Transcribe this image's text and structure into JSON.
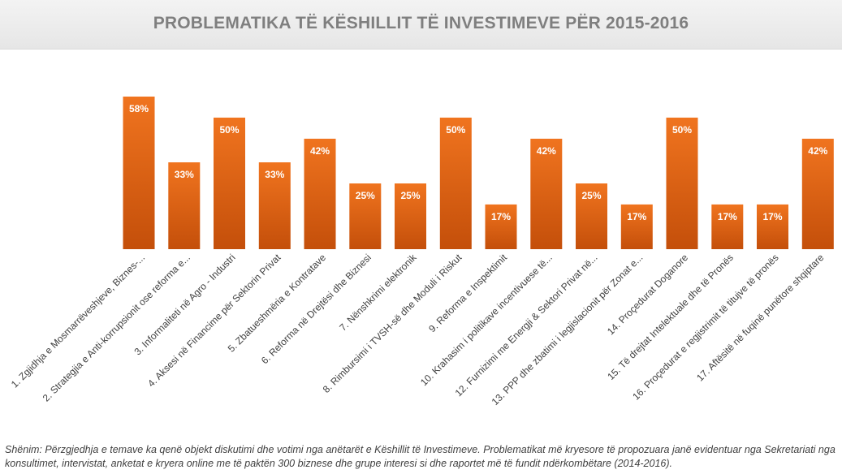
{
  "chart_data": {
    "type": "bar",
    "title": "PROBLEMATIKA TË KËSHILLIT TË INVESTIMEVE PËR 2015-2016",
    "categories": [
      "1. Zgjidhja e Mosmarrëveshjeve, Biznes-...",
      "2. Strategjia e Anti-korrupsionit ose reforma e...",
      "3. Informaliteti në Agro - Industri",
      "4. Aksesi në Financime për Sektorin Privat",
      "5. Zbatueshmëria e Kontratave",
      "6. Reforma në Drejtësi dhe Biznesi",
      "7. Nënshkrimi elektronik",
      "8. Rimbursimi i TVSH-së dhe Moduli i Riskut",
      "9. Reforma e Inspektimit",
      "10. Krahasim i politikave incentivuese të...",
      "12. Furnizimi me Energji & Sektori Privat në...",
      "13. PPP dhe zbatimi i legjislacionit për Zonat e...",
      "14. Proçedurat Doganore",
      "15. Të drejtat Intelektuale dhe të Pronës",
      "16. Proçedurat e regjistrimit të titujve të pronës",
      "17. Aftësitë në fuqinë punëtore shqiptare"
    ],
    "values": [
      58,
      33,
      50,
      33,
      42,
      25,
      25,
      50,
      17,
      42,
      25,
      17,
      50,
      17,
      17,
      42
    ],
    "value_labels": [
      "58%",
      "33%",
      "50%",
      "33%",
      "42%",
      "25%",
      "25%",
      "50%",
      "17%",
      "42%",
      "25%",
      "17%",
      "50%",
      "17%",
      "17%",
      "42%"
    ],
    "ylim": [
      0,
      65
    ],
    "grid": false,
    "legend": "none",
    "bar_color_top": "#f0741f",
    "bar_color_bottom": "#c44f0a",
    "label_color": "#ffffff"
  },
  "note": "Shënim: Përzgjedhja e temave ka qenë objekt diskutimi dhe votimi nga anëtarët e Këshillit të Investimeve. Problematikat më kryesore të propozuara janë evidentuar nga Sekretariati nga konsultimet, intervistat, anketat e kryera online me të paktën 300 biznese dhe grupe interesi si dhe raportet më të fundit ndërkombëtare (2014-2016).",
  "colors": {
    "title": "#7f7f7f",
    "axis_text": "#404040"
  }
}
